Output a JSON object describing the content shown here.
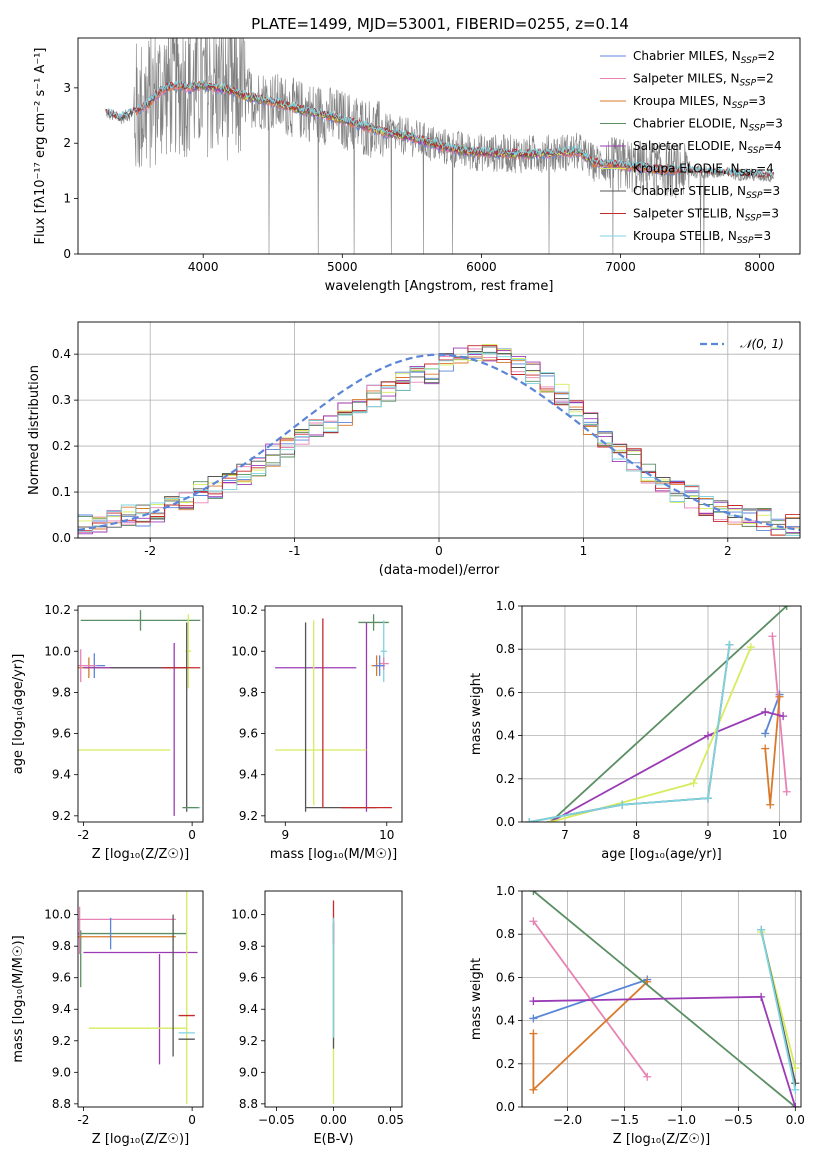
{
  "figure": {
    "title": "PLATE=1499, MJD=53001, FIBERID=0255, z=0.14"
  },
  "colors": {
    "Chabrier MILES": "#5b85d8",
    "Salpeter MILES": "#e783b4",
    "Kroupa MILES": "#d97a2a",
    "Chabrier ELODIE": "#5b8f63",
    "Salpeter ELODIE": "#9a3bb5",
    "Kroupa ELODIE": "#d6ec5e",
    "Chabrier STELIB": "#555555",
    "Salpeter STELIB": "#c62a2a",
    "Kroupa STELIB": "#7fd3e0",
    "data": "#808080",
    "gaussian": "#5b85d8"
  },
  "chart_data": [
    {
      "id": "spectrum",
      "type": "line",
      "title": "PLATE=1499, MJD=53001, FIBERID=0255, z=0.14",
      "xlabel": "wavelength [Angstrom, rest frame]",
      "ylabel": "Flux [fλ10⁻¹⁷ erg cm⁻² s⁻¹ A⁻¹]",
      "xlim": [
        3100,
        8290
      ],
      "ylim": [
        0,
        3.9
      ],
      "xticks": [
        4000,
        5000,
        6000,
        7000,
        8000
      ],
      "yticks": [
        0,
        1,
        2,
        3
      ],
      "grid": false,
      "legend_position": "top-right",
      "legend": [
        {
          "name": "Chabrier MILES",
          "nssp": "2"
        },
        {
          "name": "Salpeter MILES",
          "nssp": "2"
        },
        {
          "name": "Kroupa MILES",
          "nssp": "3"
        },
        {
          "name": "Chabrier ELODIE",
          "nssp": "3"
        },
        {
          "name": "Salpeter ELODIE",
          "nssp": "4"
        },
        {
          "name": "Kroupa ELODIE",
          "nssp": "4"
        },
        {
          "name": "Chabrier STELIB",
          "nssp": "3"
        },
        {
          "name": "Salpeter STELIB",
          "nssp": "3"
        },
        {
          "name": "Kroupa STELIB",
          "nssp": "3"
        }
      ],
      "continuum": [
        [
          3300,
          2.55
        ],
        [
          3400,
          2.45
        ],
        [
          3500,
          2.55
        ],
        [
          3600,
          2.7
        ],
        [
          3700,
          2.95
        ],
        [
          3800,
          3.05
        ],
        [
          3900,
          3.0
        ],
        [
          4000,
          3.05
        ],
        [
          4100,
          3.0
        ],
        [
          4200,
          2.95
        ],
        [
          4300,
          2.85
        ],
        [
          4500,
          2.75
        ],
        [
          4700,
          2.6
        ],
        [
          4900,
          2.5
        ],
        [
          5100,
          2.35
        ],
        [
          5300,
          2.2
        ],
        [
          5500,
          2.1
        ],
        [
          5700,
          1.95
        ],
        [
          5900,
          1.85
        ],
        [
          6100,
          1.82
        ],
        [
          6300,
          1.8
        ],
        [
          6500,
          1.82
        ],
        [
          6700,
          1.85
        ],
        [
          6800,
          1.65
        ],
        [
          7000,
          1.6
        ],
        [
          7200,
          1.55
        ],
        [
          7400,
          1.5
        ],
        [
          7600,
          1.48
        ],
        [
          7800,
          1.45
        ],
        [
          8000,
          1.42
        ],
        [
          8100,
          1.4
        ]
      ],
      "data_wavelength_range": [
        3300,
        8100
      ]
    },
    {
      "id": "residuals",
      "type": "bar",
      "xlabel": "(data-model)/error",
      "ylabel": "Normed distribution",
      "xlim": [
        -2.5,
        2.5
      ],
      "ylim": [
        0,
        0.47
      ],
      "xticks": [
        -2,
        -1,
        0,
        1,
        2
      ],
      "yticks": [
        0.0,
        0.1,
        0.2,
        0.3,
        0.4
      ],
      "grid": true,
      "legend_position": "top-right",
      "legend": [
        {
          "label": "𝒩(0, 1)"
        }
      ],
      "reference_curve": "gaussian mean 0 sigma 1",
      "bin_edges_range": [
        -2.5,
        2.5
      ],
      "bin_width": 0.1,
      "base_hist": [
        0.03,
        0.03,
        0.04,
        0.05,
        0.05,
        0.06,
        0.08,
        0.08,
        0.1,
        0.11,
        0.13,
        0.14,
        0.16,
        0.18,
        0.2,
        0.22,
        0.24,
        0.25,
        0.27,
        0.29,
        0.31,
        0.32,
        0.34,
        0.35,
        0.36,
        0.38,
        0.39,
        0.4,
        0.4,
        0.39,
        0.38,
        0.36,
        0.34,
        0.31,
        0.28,
        0.25,
        0.22,
        0.19,
        0.17,
        0.14,
        0.12,
        0.1,
        0.09,
        0.07,
        0.06,
        0.05,
        0.04,
        0.04,
        0.03,
        0.03
      ]
    },
    {
      "id": "age-vs-Z",
      "type": "scatter",
      "xlabel": "Z [log₁₀(Z/Z☉)]",
      "ylabel": "age  [log₁₀(age/yr)]",
      "xlim": [
        -2.1,
        0.2
      ],
      "ylim": [
        9.17,
        10.22
      ],
      "xticks": [
        -2,
        0
      ],
      "yticks": [
        9.2,
        9.4,
        9.6,
        9.8,
        10.0,
        10.2
      ],
      "grid": false,
      "errorbars": [
        {
          "series": "Chabrier MILES",
          "x": -1.8,
          "xerr": 0.2,
          "y": 9.93,
          "yerr": 0.06
        },
        {
          "series": "Kroupa MILES",
          "x": -1.9,
          "xerr": 0.4,
          "y": 9.92,
          "yerr": 0.05
        },
        {
          "series": "Salpeter MILES",
          "x": -2.05,
          "xerr": 0.3,
          "y": 9.93,
          "yerr": 0.08
        },
        {
          "series": "Chabrier ELODIE",
          "x": -0.95,
          "xerr": 1.1,
          "y": 10.15,
          "yerr": 0.05
        },
        {
          "series": "Salpeter ELODIE",
          "x": -1.05,
          "xerr": 0.95,
          "y": 9.92,
          "yerr": 0.0
        },
        {
          "series": "Salpeter ELODIE",
          "x": -0.33,
          "xerr": 0.0,
          "y": 9.62,
          "yerr": 0.42
        },
        {
          "series": "Kroupa ELODIE",
          "x": -1.3,
          "xerr": 0.9,
          "y": 9.52,
          "yerr": 0.0
        },
        {
          "series": "Kroupa ELODIE",
          "x": -0.07,
          "xerr": 0.05,
          "y": 10.0,
          "yerr": 0.18
        },
        {
          "series": "Chabrier STELIB",
          "x": -0.8,
          "xerr": 0.7,
          "y": 9.92,
          "yerr": 0.0
        },
        {
          "series": "Chabrier STELIB",
          "x": -0.1,
          "xerr": 0.0,
          "y": 9.68,
          "yerr": 0.46
        },
        {
          "series": "Salpeter STELIB",
          "x": -0.2,
          "xerr": 0.35,
          "y": 9.92,
          "yerr": 0.0
        },
        {
          "series": "Kroupa STELIB",
          "x": 0.0,
          "xerr": 0.15,
          "y": 9.24,
          "yerr": 0.0
        },
        {
          "series": "Chabrier ELODIE",
          "x": -0.03,
          "xerr": 0.15,
          "y": 9.24,
          "yerr": 0.0
        }
      ]
    },
    {
      "id": "age-vs-mass",
      "type": "scatter",
      "xlabel": "mass [log₁₀(M/M☉)]",
      "ylabel": "",
      "xlim": [
        8.8,
        10.15
      ],
      "ylim": [
        9.17,
        10.22
      ],
      "xticks": [
        9,
        10
      ],
      "yticks": [
        9.2,
        9.4,
        9.6,
        9.8,
        10.0,
        10.2
      ],
      "grid": false,
      "errorbars": [
        {
          "series": "Chabrier ELODIE",
          "x": 9.87,
          "xerr": 0.15,
          "y": 10.14,
          "yerr": 0.04
        },
        {
          "series": "Salpeter ELODIE",
          "x": 9.3,
          "xerr": 0.4,
          "y": 9.92,
          "yerr": 0.0
        },
        {
          "series": "Salpeter ELODIE",
          "x": 9.8,
          "xerr": 0.0,
          "y": 9.68,
          "yerr": 0.46
        },
        {
          "series": "Kroupa ELODIE",
          "x": 9.35,
          "xerr": 0.45,
          "y": 9.52,
          "yerr": 0.0
        },
        {
          "series": "Kroupa ELODIE",
          "x": 9.28,
          "xerr": 0.0,
          "y": 9.7,
          "yerr": 0.45
        },
        {
          "series": "Chabrier STELIB",
          "x": 9.2,
          "xerr": 0.0,
          "y": 9.68,
          "yerr": 0.46
        },
        {
          "series": "Chabrier STELIB",
          "x": 9.55,
          "xerr": 0.35,
          "y": 9.24,
          "yerr": 0.0
        },
        {
          "series": "Salpeter STELIB",
          "x": 9.37,
          "xerr": 0.0,
          "y": 9.7,
          "yerr": 0.46
        },
        {
          "series": "Salpeter STELIB",
          "x": 9.8,
          "xerr": 0.25,
          "y": 9.24,
          "yerr": 0.0
        },
        {
          "series": "Kroupa STELIB",
          "x": 9.97,
          "xerr": 0.03,
          "y": 10.0,
          "yerr": 0.15
        },
        {
          "series": "Salpeter MILES",
          "x": 9.97,
          "xerr": 0.05,
          "y": 9.94,
          "yerr": 0.03
        },
        {
          "series": "Kroupa MILES",
          "x": 9.9,
          "xerr": 0.05,
          "y": 9.93,
          "yerr": 0.05
        },
        {
          "series": "Chabrier MILES",
          "x": 9.93,
          "xerr": 0.05,
          "y": 9.93,
          "yerr": 0.05
        }
      ]
    },
    {
      "id": "mass-weight-vs-age",
      "type": "line",
      "xlabel": "age  [log₁₀(age/yr)]",
      "ylabel": "mass weight",
      "xlim": [
        6.4,
        10.3
      ],
      "ylim": [
        0.0,
        1.0
      ],
      "xticks": [
        7,
        8,
        9,
        10
      ],
      "yticks": [
        0.0,
        0.2,
        0.4,
        0.6,
        0.8,
        1.0
      ],
      "grid": true,
      "series": [
        {
          "name": "Chabrier MILES",
          "x": [
            9.8,
            10.0
          ],
          "y": [
            0.41,
            0.59
          ]
        },
        {
          "name": "Salpeter MILES",
          "x": [
            9.9,
            10.1
          ],
          "y": [
            0.86,
            0.14
          ]
        },
        {
          "name": "Kroupa MILES",
          "x": [
            9.8,
            9.87,
            10.0
          ],
          "y": [
            0.34,
            0.08,
            0.58
          ]
        },
        {
          "name": "Chabrier ELODIE",
          "x": [
            6.8,
            10.1
          ],
          "y": [
            0.0,
            1.0
          ]
        },
        {
          "name": "Salpeter ELODIE",
          "x": [
            6.8,
            9.0,
            9.8,
            10.05
          ],
          "y": [
            0.0,
            0.4,
            0.51,
            0.49
          ]
        },
        {
          "name": "Kroupa ELODIE",
          "x": [
            6.8,
            8.8,
            9.6
          ],
          "y": [
            0.0,
            0.18,
            0.81
          ]
        },
        {
          "name": "Chabrier STELIB",
          "x": [
            6.5,
            7.8,
            9.0,
            9.3
          ],
          "y": [
            0.0,
            0.08,
            0.11,
            0.82
          ]
        },
        {
          "name": "Kroupa STELIB",
          "x": [
            6.5,
            7.8,
            9.0,
            9.3
          ],
          "y": [
            0.0,
            0.08,
            0.11,
            0.82
          ]
        }
      ]
    },
    {
      "id": "mass-vs-Z",
      "type": "scatter",
      "xlabel": "Z [log₁₀(Z/Z☉)]",
      "ylabel": "mass [log₁₀(M/M☉)]",
      "xlim": [
        -2.1,
        0.2
      ],
      "ylim": [
        8.78,
        10.15
      ],
      "xticks": [
        -2,
        0
      ],
      "yticks": [
        8.8,
        9.0,
        9.2,
        9.4,
        9.6,
        9.8,
        10.0
      ],
      "grid": false,
      "errorbars": [
        {
          "series": "Chabrier ELODIE",
          "x": -1.1,
          "xerr": 1.0,
          "y": 9.88,
          "yerr": 0.0
        },
        {
          "series": "Chabrier ELODIE",
          "x": -2.05,
          "xerr": 0.0,
          "y": 9.72,
          "yerr": 0.18
        },
        {
          "series": "Salpeter ELODIE",
          "x": -0.95,
          "xerr": 1.05,
          "y": 9.76,
          "yerr": 0.0
        },
        {
          "series": "Salpeter ELODIE",
          "x": -0.6,
          "xerr": 0.0,
          "y": 9.4,
          "yerr": 0.35
        },
        {
          "series": "Salpeter MILES",
          "x": -1.2,
          "xerr": 0.9,
          "y": 9.97,
          "yerr": 0.0
        },
        {
          "series": "Salpeter MILES",
          "x": -2.07,
          "xerr": 0.0,
          "y": 9.9,
          "yerr": 0.15
        },
        {
          "series": "Kroupa MILES",
          "x": -1.2,
          "xerr": 0.9,
          "y": 9.86,
          "yerr": 0.0
        },
        {
          "series": "Chabrier MILES",
          "x": -1.5,
          "xerr": 0.0,
          "y": 9.88,
          "yerr": 0.1
        },
        {
          "series": "Kroupa ELODIE",
          "x": -1.0,
          "xerr": 0.9,
          "y": 9.28,
          "yerr": 0.0
        },
        {
          "series": "Kroupa ELODIE",
          "x": -0.1,
          "xerr": 0.0,
          "y": 9.5,
          "yerr": 0.7
        },
        {
          "series": "Chabrier STELIB",
          "x": -0.35,
          "xerr": 0.0,
          "y": 9.55,
          "yerr": 0.45
        },
        {
          "series": "Salpeter STELIB",
          "x": -0.1,
          "xerr": 0.15,
          "y": 9.36,
          "yerr": 0.0
        },
        {
          "series": "Kroupa STELIB",
          "x": -0.1,
          "xerr": 0.15,
          "y": 9.25,
          "yerr": 0.0
        },
        {
          "series": "Chabrier STELIB",
          "x": -0.1,
          "xerr": 0.15,
          "y": 9.21,
          "yerr": 0.0
        }
      ]
    },
    {
      "id": "mass-vs-EBV",
      "type": "scatter",
      "xlabel": "E(B-V)",
      "ylabel": "",
      "xlim": [
        -0.06,
        0.06
      ],
      "ylim": [
        8.78,
        10.15
      ],
      "xticks": [
        -0.05,
        0.0,
        0.05
      ],
      "xticklabels": [
        "−0.05",
        "0.00",
        "0.05"
      ],
      "yticks": [
        8.8,
        9.0,
        9.2,
        9.4,
        9.6,
        9.8,
        10.0
      ],
      "grid": false,
      "errorbars": [
        {
          "series": "Salpeter STELIB",
          "x": 0.0,
          "xerr": 0.0,
          "y": 9.95,
          "yerr": 0.14
        },
        {
          "series": "Kroupa ELODIE",
          "x": 0.0,
          "xerr": 0.0,
          "y": 9.3,
          "yerr": 0.5
        },
        {
          "series": "Chabrier STELIB",
          "x": 0.0,
          "xerr": 0.0,
          "y": 9.55,
          "yerr": 0.4
        },
        {
          "series": "Kroupa STELIB",
          "x": 0.0,
          "xerr": 0.0,
          "y": 9.6,
          "yerr": 0.38
        }
      ]
    },
    {
      "id": "mass-weight-vs-Z",
      "type": "line",
      "xlabel": "Z [log₁₀(Z/Z☉)]",
      "ylabel": "mass weight",
      "xlim": [
        -2.4,
        0.05
      ],
      "ylim": [
        0.0,
        1.0
      ],
      "xticks": [
        -2.0,
        -1.5,
        -1.0,
        -0.5,
        0.0
      ],
      "xticklabels": [
        "−2.0",
        "−1.5",
        "−1.0",
        "−0.5",
        "0.0"
      ],
      "yticks": [
        0.0,
        0.2,
        0.4,
        0.6,
        0.8,
        1.0
      ],
      "grid": true,
      "series": [
        {
          "name": "Chabrier MILES",
          "x": [
            -2.3,
            -1.3
          ],
          "y": [
            0.41,
            0.59
          ]
        },
        {
          "name": "Salpeter MILES",
          "x": [
            -2.3,
            -1.3
          ],
          "y": [
            0.86,
            0.14
          ]
        },
        {
          "name": "Kroupa MILES",
          "x": [
            -2.3,
            -2.3,
            -1.3
          ],
          "y": [
            0.34,
            0.08,
            0.58
          ]
        },
        {
          "name": "Chabrier ELODIE",
          "x": [
            -2.3,
            0.0
          ],
          "y": [
            1.0,
            0.0
          ]
        },
        {
          "name": "Salpeter ELODIE",
          "x": [
            -2.3,
            -0.3,
            0.0
          ],
          "y": [
            0.49,
            0.51,
            0.0
          ]
        },
        {
          "name": "Kroupa ELODIE",
          "x": [
            -0.3,
            0.0
          ],
          "y": [
            0.81,
            0.18
          ]
        },
        {
          "name": "Chabrier STELIB",
          "x": [
            -0.3,
            0.0
          ],
          "y": [
            0.82,
            0.11
          ]
        },
        {
          "name": "Kroupa STELIB",
          "x": [
            -0.3,
            0.0
          ],
          "y": [
            0.82,
            0.08
          ]
        }
      ]
    }
  ]
}
